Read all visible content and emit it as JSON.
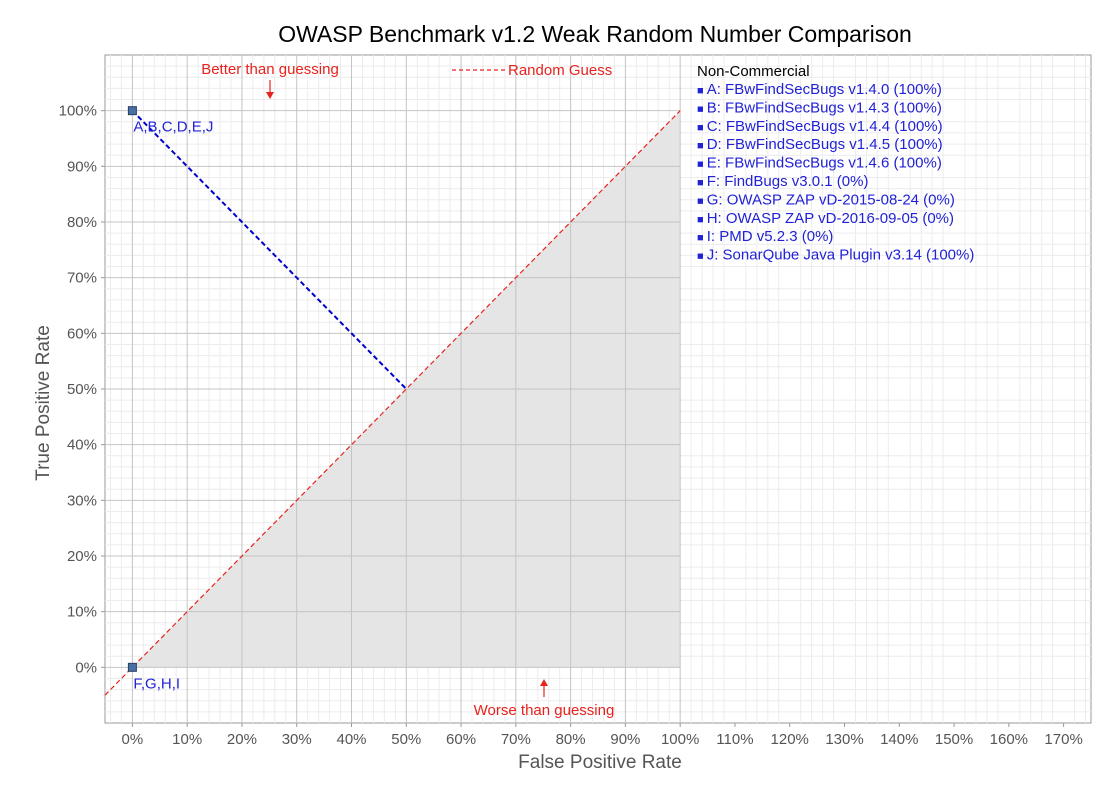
{
  "chart_data": {
    "type": "scatter",
    "title": "OWASP Benchmark v1.2 Weak Random Number Comparison",
    "xlabel": "False Positive Rate",
    "ylabel": "True Positive Rate",
    "xlim": [
      -5,
      175
    ],
    "ylim": [
      -10,
      110
    ],
    "x_ticks": [
      "0%",
      "10%",
      "20%",
      "30%",
      "40%",
      "50%",
      "60%",
      "70%",
      "80%",
      "90%",
      "100%",
      "110%",
      "120%",
      "130%",
      "140%",
      "150%",
      "160%",
      "170%"
    ],
    "y_ticks": [
      "0%",
      "10%",
      "20%",
      "30%",
      "40%",
      "50%",
      "60%",
      "70%",
      "80%",
      "90%",
      "100%"
    ],
    "grid": true,
    "points": [
      {
        "label": "A,B,C,D,E,J",
        "x": 0,
        "y": 100
      },
      {
        "label": "F,G,H,I",
        "x": 0,
        "y": 0
      }
    ],
    "random_guess_line": {
      "name": "Random Guess",
      "from": [
        -5,
        -5
      ],
      "to": [
        100,
        100
      ]
    },
    "projection_line": {
      "from": [
        0,
        100
      ],
      "to": [
        50,
        50
      ]
    },
    "annotations": {
      "better": "Better than guessing",
      "worse": "Worse than guessing"
    },
    "legend": {
      "placement": "right",
      "heading": "Non-Commercial",
      "items": [
        "A: FBwFindSecBugs v1.4.0 (100%)",
        "B: FBwFindSecBugs v1.4.3 (100%)",
        "C: FBwFindSecBugs v1.4.4 (100%)",
        "D: FBwFindSecBugs v1.4.5 (100%)",
        "E: FBwFindSecBugs v1.4.6 (100%)",
        "F: FindBugs v3.0.1 (0%)",
        "G: OWASP ZAP vD-2015-08-24 (0%)",
        "H: OWASP ZAP vD-2016-09-05 (0%)",
        "I:  PMD v5.2.3 (0%)",
        "J: SonarQube Java Plugin v3.14 (100%)"
      ],
      "marker": "■"
    },
    "colors": {
      "points": "#2121d6",
      "projection_line": "#0000cc",
      "random_guess": "#e8231d",
      "worse_region": "#e5e5e5",
      "grid_major": "#c4c4c4",
      "grid_minor": "#ececec",
      "axis_text": "#555555"
    }
  }
}
